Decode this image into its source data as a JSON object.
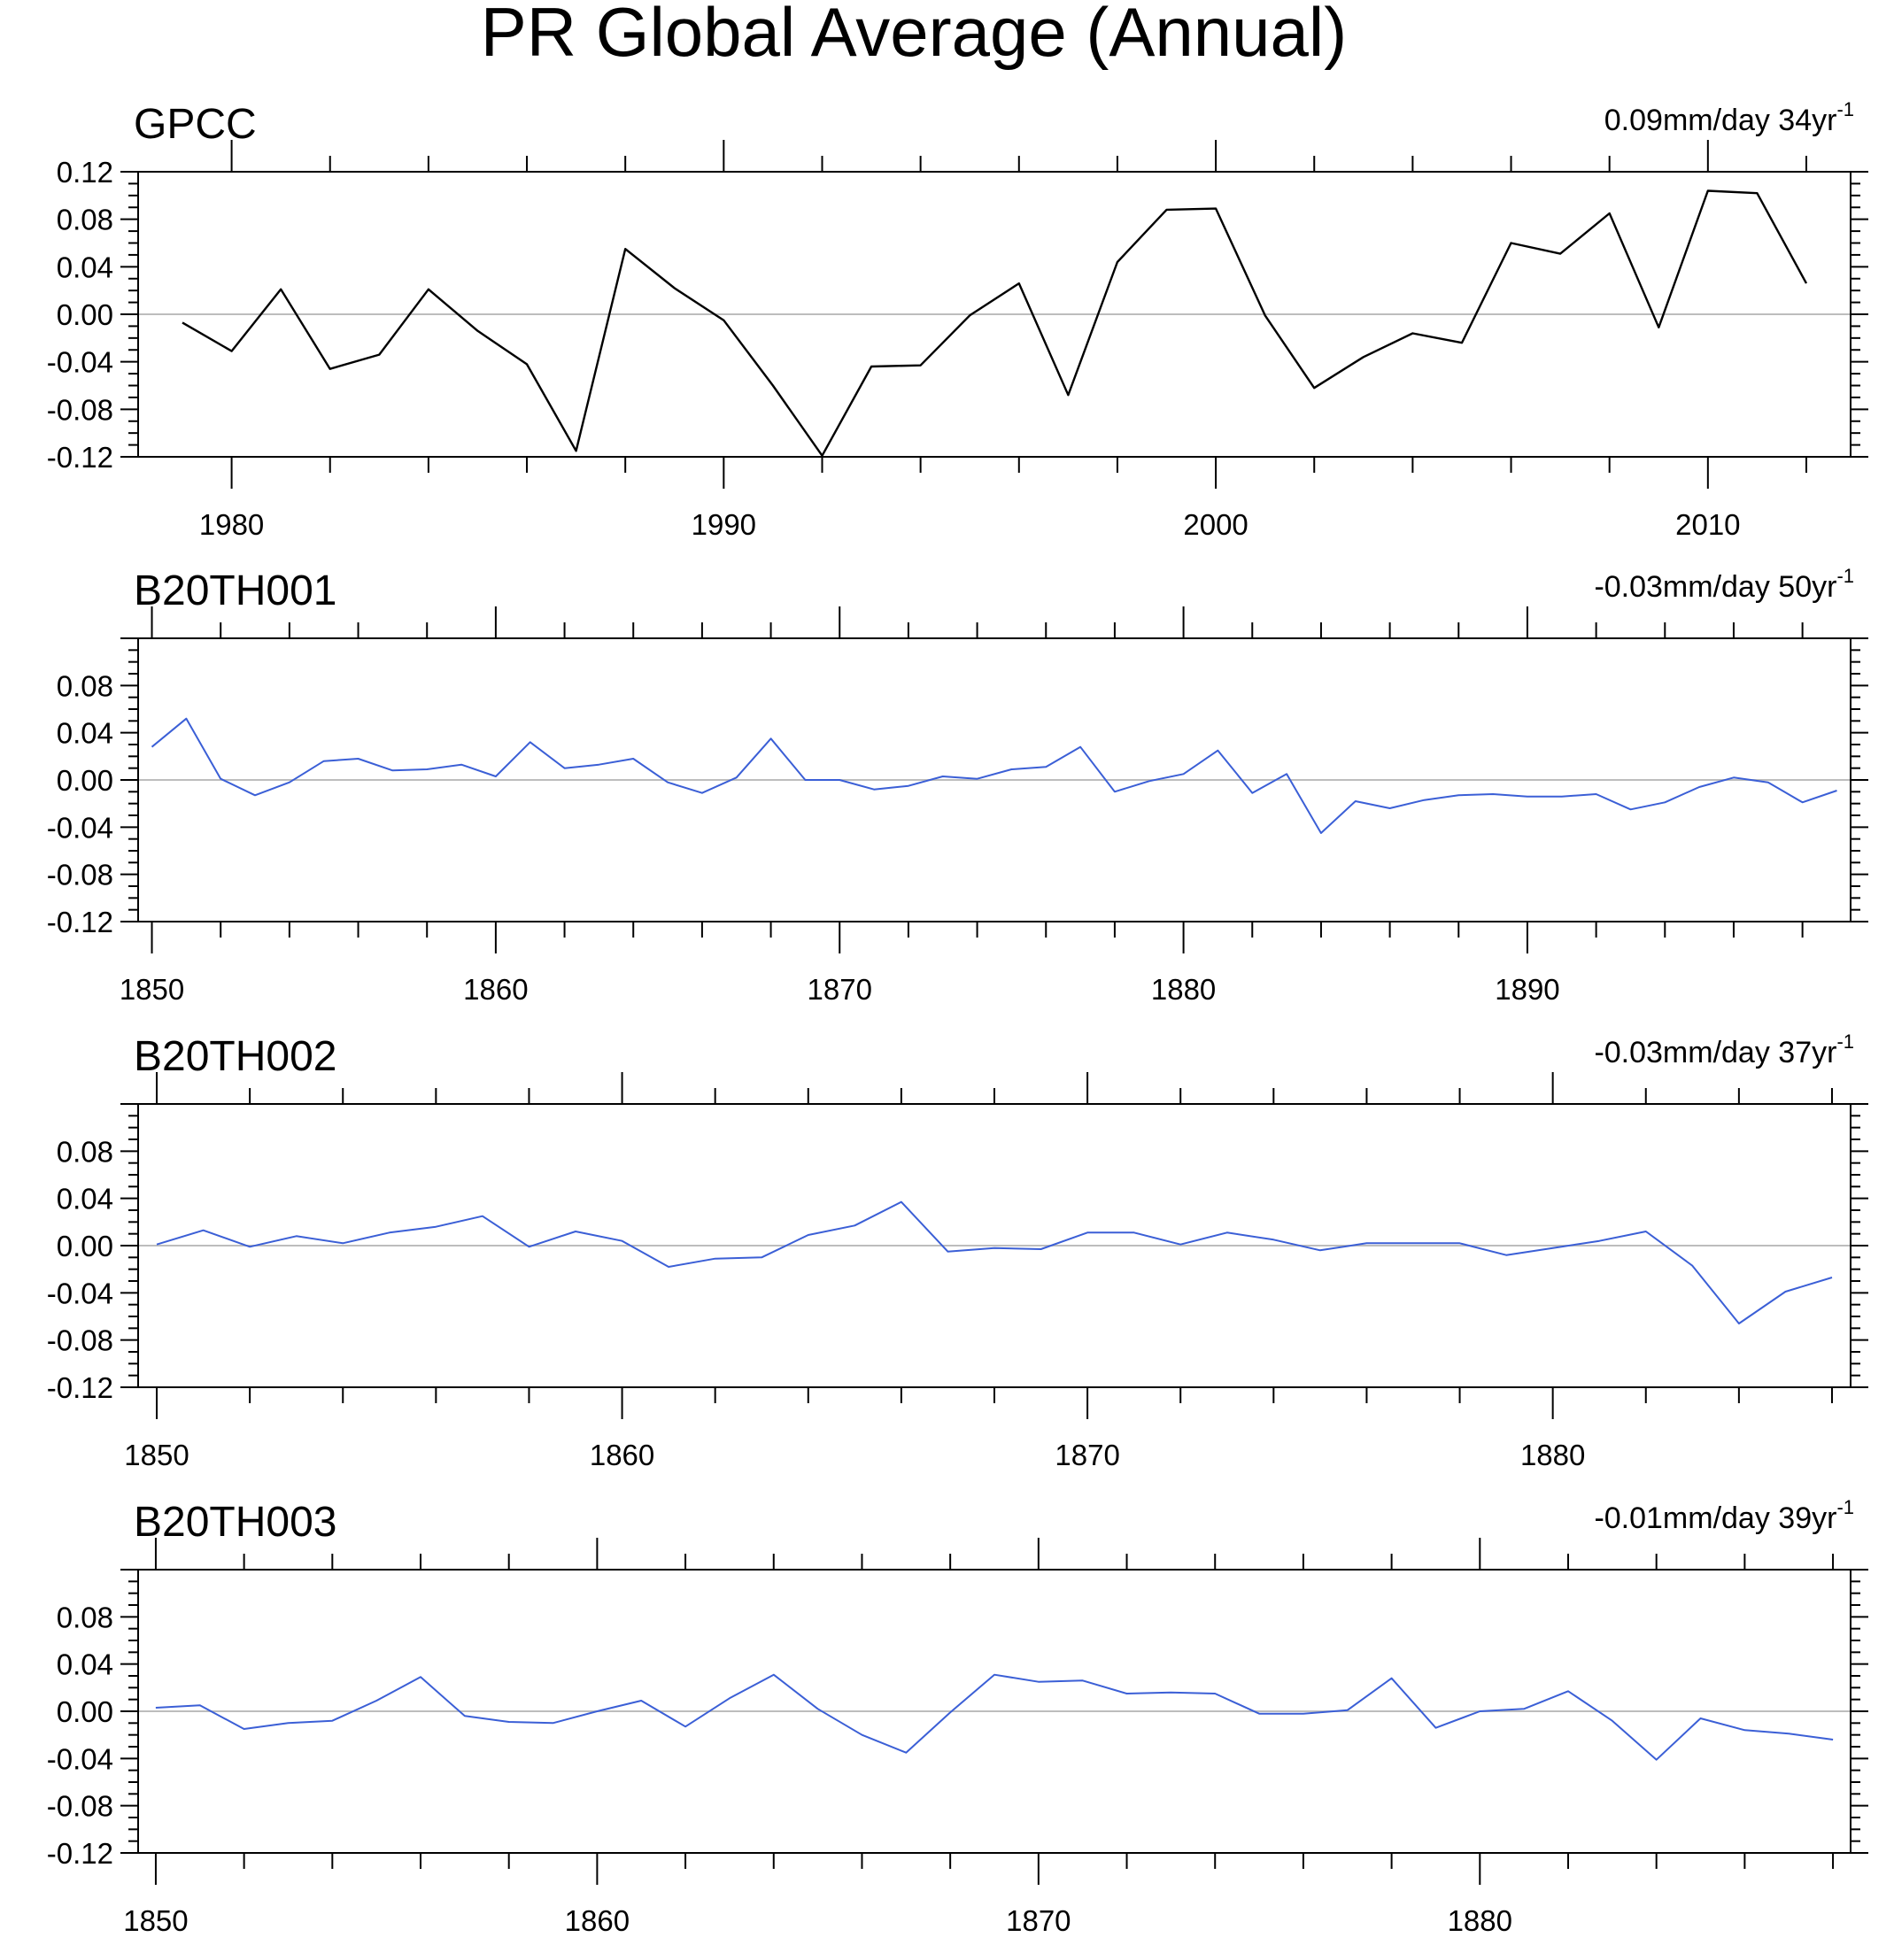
{
  "title": "PR Global Average (Annual)",
  "colors": {
    "observed": "#000000",
    "model": "#3b5fd6",
    "zero_line": "#bdbdbd",
    "frame": "#000000"
  },
  "chart_data": [
    {
      "type": "line",
      "title": "GPCC",
      "trend_label": "0.09mm/day 34yr",
      "trend_sup": "-1",
      "color": "#000000",
      "xlim": [
        1978.1,
        2012.9
      ],
      "ylim": [
        -0.12,
        0.12
      ],
      "yticks": [
        "0.12",
        "0.08",
        "0.04",
        "0.00",
        "-0.04",
        "-0.08",
        "-0.12"
      ],
      "xticks": [
        "1980",
        "1990",
        "2000",
        "2010"
      ],
      "x": [
        1979,
        1980,
        1981,
        1982,
        1983,
        1984,
        1985,
        1986,
        1987,
        1988,
        1989,
        1990,
        1991,
        1992,
        1993,
        1994,
        1995,
        1996,
        1997,
        1998,
        1999,
        2000,
        2001,
        2002,
        2003,
        2004,
        2005,
        2006,
        2007,
        2008,
        2009,
        2010,
        2011,
        2012
      ],
      "series": [
        {
          "values": [
            -0.007,
            -0.031,
            0.021,
            -0.046,
            -0.034,
            0.021,
            -0.014,
            -0.042,
            -0.115,
            0.055,
            0.022,
            -0.005,
            -0.06,
            -0.119,
            -0.044,
            -0.043,
            -0.001,
            0.026,
            -0.068,
            0.044,
            0.088,
            0.089,
            -0.001,
            -0.062,
            -0.036,
            -0.016,
            -0.024,
            0.06,
            0.051,
            0.085,
            -0.011,
            0.104,
            0.102,
            0.026
          ]
        }
      ]
    },
    {
      "type": "line",
      "title": "B20TH001",
      "trend_label": "-0.03mm/day 50yr",
      "trend_sup": "-1",
      "color": "#3b5fd6",
      "xlim": [
        1849.6,
        1899.4
      ],
      "ylim": [
        -0.12,
        0.12
      ],
      "yticks": [
        "0.08",
        "0.04",
        "0.00",
        "-0.04",
        "-0.08",
        "-0.12"
      ],
      "xticks": [
        "1850",
        "1860",
        "1870",
        "1880",
        "1890"
      ],
      "x": [
        1850,
        1851,
        1852,
        1853,
        1854,
        1855,
        1856,
        1857,
        1858,
        1859,
        1860,
        1861,
        1862,
        1863,
        1864,
        1865,
        1866,
        1867,
        1868,
        1869,
        1870,
        1871,
        1872,
        1873,
        1874,
        1875,
        1876,
        1877,
        1878,
        1879,
        1880,
        1881,
        1882,
        1883,
        1884,
        1885,
        1886,
        1887,
        1888,
        1889,
        1890,
        1891,
        1892,
        1893,
        1894,
        1895,
        1896,
        1897,
        1898,
        1899
      ],
      "series": [
        {
          "values": [
            0.028,
            0.052,
            0.001,
            -0.013,
            -0.002,
            0.016,
            0.018,
            0.008,
            0.009,
            0.013,
            0.003,
            0.032,
            0.01,
            0.013,
            0.018,
            -0.002,
            -0.011,
            0.002,
            0.035,
            0.0,
            0.0,
            -0.008,
            -0.005,
            0.003,
            0.001,
            0.009,
            0.011,
            0.028,
            -0.01,
            -0.001,
            0.005,
            0.025,
            -0.011,
            0.005,
            -0.045,
            -0.018,
            -0.024,
            -0.017,
            -0.013,
            -0.012,
            -0.014,
            -0.014,
            -0.012,
            -0.025,
            -0.019,
            -0.006,
            0.002,
            -0.002,
            -0.019,
            -0.009
          ]
        }
      ]
    },
    {
      "type": "line",
      "title": "B20TH002",
      "trend_label": "-0.03mm/day 37yr",
      "trend_sup": "-1",
      "color": "#3b5fd6",
      "xlim": [
        1849.6,
        1886.4
      ],
      "ylim": [
        -0.12,
        0.12
      ],
      "yticks": [
        "0.08",
        "0.04",
        "0.00",
        "-0.04",
        "-0.08",
        "-0.12"
      ],
      "xticks": [
        "1850",
        "1860",
        "1870",
        "1880"
      ],
      "x": [
        1850,
        1851,
        1852,
        1853,
        1854,
        1855,
        1856,
        1857,
        1858,
        1859,
        1860,
        1861,
        1862,
        1863,
        1864,
        1865,
        1866,
        1867,
        1868,
        1869,
        1870,
        1871,
        1872,
        1873,
        1874,
        1875,
        1876,
        1877,
        1878,
        1879,
        1880,
        1881,
        1882,
        1883,
        1884,
        1885,
        1886
      ],
      "series": [
        {
          "values": [
            0.001,
            0.013,
            -0.001,
            0.008,
            0.002,
            0.011,
            0.016,
            0.025,
            -0.001,
            0.012,
            0.004,
            -0.018,
            -0.011,
            -0.01,
            0.009,
            0.017,
            0.037,
            -0.005,
            -0.002,
            -0.003,
            0.011,
            0.011,
            0.001,
            0.011,
            0.005,
            -0.004,
            0.002,
            0.002,
            0.002,
            -0.008,
            -0.002,
            0.004,
            0.012,
            -0.017,
            -0.066,
            -0.039,
            -0.027
          ]
        }
      ]
    },
    {
      "type": "line",
      "title": "B20TH003",
      "trend_label": "-0.01mm/day 39yr",
      "trend_sup": "-1",
      "color": "#3b5fd6",
      "xlim": [
        1849.6,
        1888.4
      ],
      "ylim": [
        -0.12,
        0.12
      ],
      "yticks": [
        "0.08",
        "0.04",
        "0.00",
        "-0.04",
        "-0.08",
        "-0.12"
      ],
      "xticks": [
        "1850",
        "1860",
        "1870",
        "1880"
      ],
      "x": [
        1850,
        1851,
        1852,
        1853,
        1854,
        1855,
        1856,
        1857,
        1858,
        1859,
        1860,
        1861,
        1862,
        1863,
        1864,
        1865,
        1866,
        1867,
        1868,
        1869,
        1870,
        1871,
        1872,
        1873,
        1874,
        1875,
        1876,
        1877,
        1878,
        1879,
        1880,
        1881,
        1882,
        1883,
        1884,
        1885,
        1886,
        1887,
        1888
      ],
      "series": [
        {
          "values": [
            0.003,
            0.005,
            -0.015,
            -0.01,
            -0.008,
            0.009,
            0.029,
            -0.004,
            -0.009,
            -0.01,
            0.0,
            0.009,
            -0.013,
            0.011,
            0.031,
            0.002,
            -0.02,
            -0.035,
            -0.001,
            0.031,
            0.025,
            0.026,
            0.015,
            0.016,
            0.015,
            -0.002,
            -0.002,
            0.001,
            0.028,
            -0.014,
            0.0,
            0.002,
            0.017,
            -0.008,
            -0.041,
            -0.006,
            -0.016,
            -0.019,
            -0.024
          ]
        }
      ]
    }
  ]
}
